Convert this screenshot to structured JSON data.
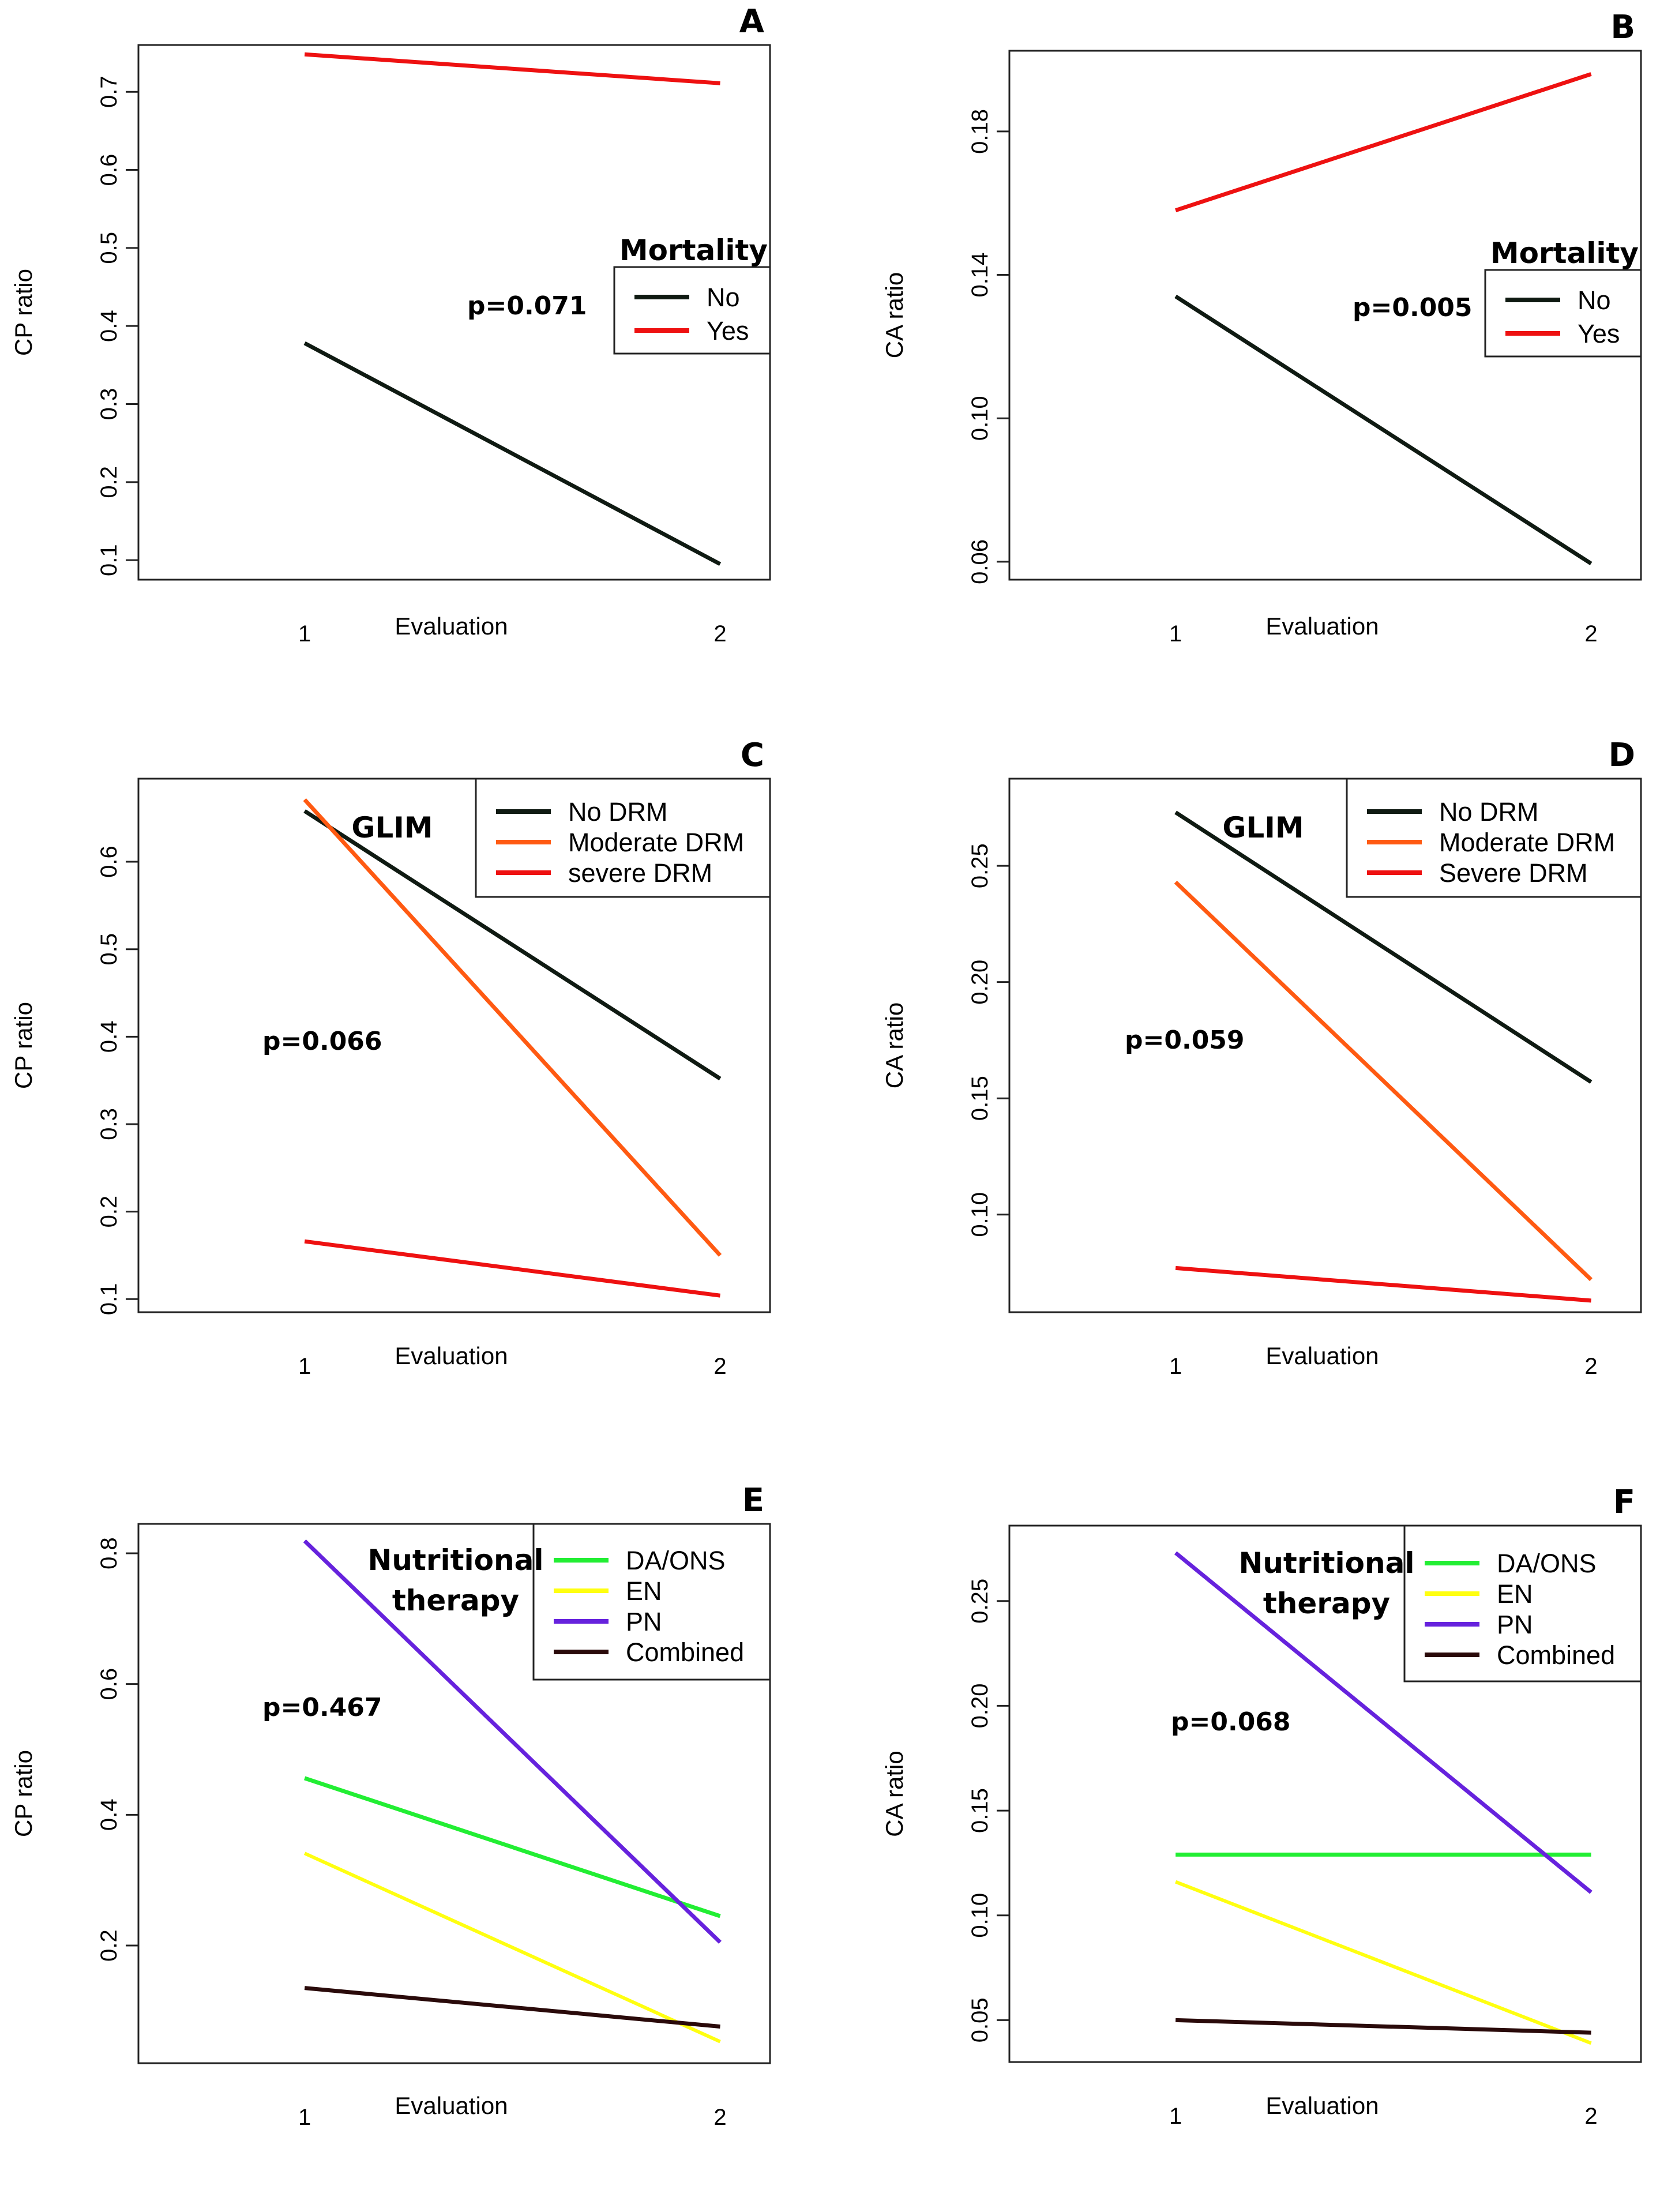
{
  "chart_data": [
    {
      "panel": "A",
      "type": "line",
      "title": "",
      "xlabel": "Evaluation",
      "ylabel": "CP ratio",
      "x": [
        1,
        2
      ],
      "xlim": [
        0.6,
        2.12
      ],
      "ylim": [
        0.075,
        0.76
      ],
      "yticks": [
        0.1,
        0.2,
        0.3,
        0.4,
        0.5,
        0.6,
        0.7
      ],
      "ytick_labels": [
        "0.1",
        "0.2",
        "0.3",
        "0.4",
        "0.5",
        "0.6",
        "0.7"
      ],
      "xtick_labels": [
        "1",
        "2"
      ],
      "legend": {
        "title": [
          "Mortality"
        ],
        "placement": "right"
      },
      "pvalue": "p=0.071",
      "series": [
        {
          "name": "No",
          "color": "#0f1a12",
          "values": [
            0.378,
            0.095
          ]
        },
        {
          "name": "Yes",
          "color": "#ee1111",
          "values": [
            0.748,
            0.711
          ]
        }
      ]
    },
    {
      "panel": "B",
      "type": "line",
      "title": "",
      "xlabel": "Evaluation",
      "ylabel": "CA ratio",
      "x": [
        1,
        2
      ],
      "xlim": [
        0.6,
        2.12
      ],
      "ylim": [
        0.055,
        0.2025
      ],
      "yticks": [
        0.06,
        0.1,
        0.14,
        0.18
      ],
      "ytick_labels": [
        "0.06",
        "0.10",
        "0.14",
        "0.18"
      ],
      "xtick_labels": [
        "1",
        "2"
      ],
      "legend": {
        "title": [
          "Mortality"
        ],
        "placement": "right"
      },
      "pvalue": "p=0.005",
      "series": [
        {
          "name": "No",
          "color": "#0f1a12",
          "values": [
            0.134,
            0.0595
          ]
        },
        {
          "name": "Yes",
          "color": "#ee1111",
          "values": [
            0.158,
            0.196
          ]
        }
      ]
    },
    {
      "panel": "C",
      "type": "line",
      "title": "",
      "xlabel": "Evaluation",
      "ylabel": "CP ratio",
      "x": [
        1,
        2
      ],
      "xlim": [
        0.6,
        2.12
      ],
      "ylim": [
        0.085,
        0.695
      ],
      "yticks": [
        0.1,
        0.2,
        0.3,
        0.4,
        0.5,
        0.6
      ],
      "ytick_labels": [
        "0.1",
        "0.2",
        "0.3",
        "0.4",
        "0.5",
        "0.6"
      ],
      "xtick_labels": [
        "1",
        "2"
      ],
      "legend": {
        "title": [
          "GLIM"
        ],
        "placement": "top-right"
      },
      "pvalue": "p=0.066",
      "series": [
        {
          "name": "No DRM",
          "color": "#0f1a12",
          "values": [
            0.658,
            0.352
          ]
        },
        {
          "name": "Moderate DRM",
          "color": "#ff5a12",
          "values": [
            0.671,
            0.15
          ]
        },
        {
          "name": "severe DRM",
          "color": "#ee1111",
          "values": [
            0.166,
            0.104
          ]
        }
      ]
    },
    {
      "panel": "D",
      "type": "line",
      "title": "",
      "xlabel": "Evaluation",
      "ylabel": "CA ratio",
      "x": [
        1,
        2
      ],
      "xlim": [
        0.6,
        2.12
      ],
      "ylim": [
        0.058,
        0.2875
      ],
      "yticks": [
        0.1,
        0.15,
        0.2,
        0.25
      ],
      "ytick_labels": [
        "0.10",
        "0.15",
        "0.20",
        "0.25"
      ],
      "xtick_labels": [
        "1",
        "2"
      ],
      "legend": {
        "title": [
          "GLIM"
        ],
        "placement": "top-right"
      },
      "pvalue": "p=0.059",
      "series": [
        {
          "name": "No DRM",
          "color": "#0f1a12",
          "values": [
            0.273,
            0.157
          ]
        },
        {
          "name": "Moderate DRM",
          "color": "#ff5a12",
          "values": [
            0.243,
            0.072
          ]
        },
        {
          "name": "Severe DRM",
          "color": "#ee1111",
          "values": [
            0.077,
            0.063
          ]
        }
      ]
    },
    {
      "panel": "E",
      "type": "line",
      "title": "",
      "xlabel": "Evaluation",
      "ylabel": "CP ratio",
      "x": [
        1,
        2
      ],
      "xlim": [
        0.6,
        2.12
      ],
      "ylim": [
        0.02,
        0.845
      ],
      "yticks": [
        0.2,
        0.4,
        0.6,
        0.8
      ],
      "ytick_labels": [
        "0.2",
        "0.4",
        "0.6",
        "0.8"
      ],
      "xtick_labels": [
        "1",
        "2"
      ],
      "legend": {
        "title": [
          "Nutritional",
          "therapy"
        ],
        "placement": "top-right"
      },
      "pvalue": "p=0.467",
      "series": [
        {
          "name": "DA/ONS",
          "color": "#22ee33",
          "values": [
            0.456,
            0.245
          ]
        },
        {
          "name": "EN",
          "color": "#ffff10",
          "values": [
            0.341,
            0.053
          ]
        },
        {
          "name": "PN",
          "color": "#6622dd",
          "values": [
            0.819,
            0.205
          ]
        },
        {
          "name": "Combined",
          "color": "#2a0a0a",
          "values": [
            0.135,
            0.076
          ]
        }
      ]
    },
    {
      "panel": "F",
      "type": "line",
      "title": "",
      "xlabel": "Evaluation",
      "ylabel": "CA ratio",
      "x": [
        1,
        2
      ],
      "xlim": [
        0.6,
        2.12
      ],
      "ylim": [
        0.03,
        0.286
      ],
      "yticks": [
        0.05,
        0.1,
        0.15,
        0.2,
        0.25
      ],
      "ytick_labels": [
        "0.05",
        "0.10",
        "0.15",
        "0.20",
        "0.25"
      ],
      "xtick_labels": [
        "1",
        "2"
      ],
      "legend": {
        "title": [
          "Nutritional",
          "therapy"
        ],
        "placement": "top-right"
      },
      "pvalue": "p=0.068",
      "series": [
        {
          "name": "DA/ONS",
          "color": "#22ee33",
          "values": [
            0.129,
            0.129
          ]
        },
        {
          "name": "EN",
          "color": "#ffff10",
          "values": [
            0.116,
            0.039
          ]
        },
        {
          "name": "PN",
          "color": "#6622dd",
          "values": [
            0.273,
            0.111
          ]
        },
        {
          "name": "Combined",
          "color": "#2a0a0a",
          "values": [
            0.05,
            0.044
          ]
        }
      ]
    }
  ]
}
